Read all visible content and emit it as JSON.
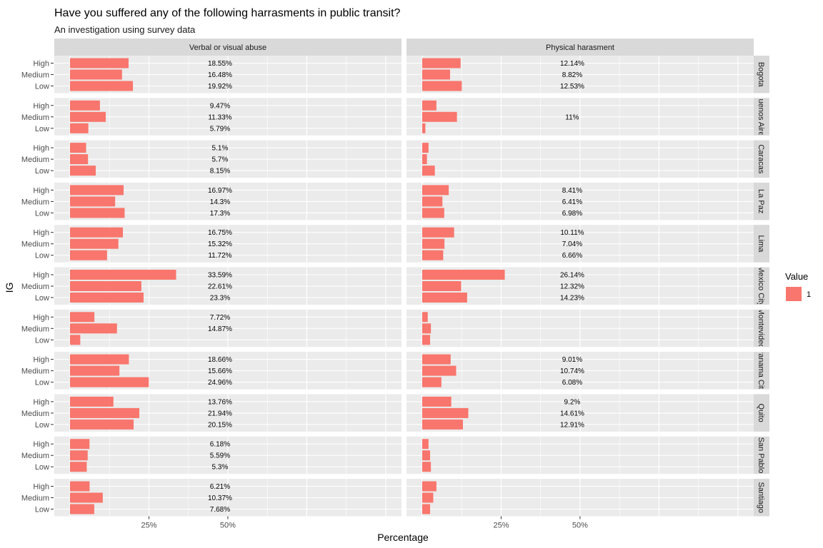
{
  "chart_data": {
    "type": "bar",
    "orientation": "horizontal",
    "title": "Have you suffered any of the following harrasments in public transit?",
    "subtitle": "An investigation using survey data",
    "xlabel": "Percentage",
    "ylabel": "IG",
    "xlim": [
      0,
      42
    ],
    "x_ticks": [
      {
        "value": 10,
        "label": "25%"
      },
      {
        "value": 20,
        "label": "50%"
      }
    ],
    "grid": true,
    "categories": [
      "High",
      "Medium",
      "Low"
    ],
    "panels": [
      {
        "label": "Verbal or visual abuse"
      },
      {
        "label": "Physical harasment"
      }
    ],
    "cities": [
      {
        "label": "Bogota",
        "verbal": {
          "values": [
            7.42,
            6.59,
            7.97
          ],
          "labels": [
            "18.55%",
            "16.48%",
            "19.92%"
          ]
        },
        "physical": {
          "values": [
            4.86,
            3.53,
            5.01
          ],
          "labels": [
            "12.14%",
            "8.82%",
            "12.53%"
          ]
        }
      },
      {
        "label": "Buenos Aires",
        "verbal": {
          "values": [
            3.79,
            4.53,
            2.32
          ],
          "labels": [
            "9.47%",
            "11.33%",
            "5.79%"
          ]
        },
        "physical": {
          "values": [
            1.8,
            4.4,
            0.4
          ],
          "labels": [
            "",
            "11%",
            ""
          ]
        }
      },
      {
        "label": "Caracas",
        "verbal": {
          "values": [
            2.04,
            2.28,
            3.26
          ],
          "labels": [
            "5.1%",
            "5.7%",
            "8.15%"
          ]
        },
        "physical": {
          "values": [
            0.8,
            0.6,
            1.6
          ],
          "labels": [
            "",
            "",
            ""
          ]
        }
      },
      {
        "label": "La Paz",
        "verbal": {
          "values": [
            6.79,
            5.72,
            6.92
          ],
          "labels": [
            "16.97%",
            "14.3%",
            "17.3%"
          ]
        },
        "physical": {
          "values": [
            3.36,
            2.56,
            2.79
          ],
          "labels": [
            "8.41%",
            "6.41%",
            "6.98%"
          ]
        }
      },
      {
        "label": "Lima",
        "verbal": {
          "values": [
            6.7,
            6.13,
            4.69
          ],
          "labels": [
            "16.75%",
            "15.32%",
            "11.72%"
          ]
        },
        "physical": {
          "values": [
            4.04,
            2.82,
            2.66
          ],
          "labels": [
            "10.11%",
            "7.04%",
            "6.66%"
          ]
        }
      },
      {
        "label": "Mexico City",
        "verbal": {
          "values": [
            13.44,
            9.04,
            9.32
          ],
          "labels": [
            "33.59%",
            "22.61%",
            "23.3%"
          ]
        },
        "physical": {
          "values": [
            10.46,
            4.93,
            5.69
          ],
          "labels": [
            "26.14%",
            "12.32%",
            "14.23%"
          ]
        }
      },
      {
        "label": "Montevideo",
        "verbal": {
          "values": [
            3.09,
            5.95,
            1.3
          ],
          "labels": [
            "7.72%",
            "14.87%",
            ""
          ]
        },
        "physical": {
          "values": [
            0.7,
            1.1,
            1.0
          ],
          "labels": [
            "",
            "",
            ""
          ]
        }
      },
      {
        "label": "Panama City",
        "verbal": {
          "values": [
            7.46,
            6.26,
            9.98
          ],
          "labels": [
            "18.66%",
            "15.66%",
            "24.96%"
          ]
        },
        "physical": {
          "values": [
            3.6,
            4.3,
            2.43
          ],
          "labels": [
            "9.01%",
            "10.74%",
            "6.08%"
          ]
        }
      },
      {
        "label": "Quito",
        "verbal": {
          "values": [
            5.5,
            8.78,
            8.06
          ],
          "labels": [
            "13.76%",
            "21.94%",
            "20.15%"
          ]
        },
        "physical": {
          "values": [
            3.68,
            5.84,
            5.16
          ],
          "labels": [
            "9.2%",
            "14.61%",
            "12.91%"
          ]
        }
      },
      {
        "label": "San Pablo",
        "verbal": {
          "values": [
            2.47,
            2.24,
            2.12
          ],
          "labels": [
            "6.18%",
            "5.59%",
            "5.3%"
          ]
        },
        "physical": {
          "values": [
            0.8,
            1.0,
            1.1
          ],
          "labels": [
            "",
            "",
            ""
          ]
        }
      },
      {
        "label": "Santiago",
        "verbal": {
          "values": [
            2.48,
            4.15,
            3.07
          ],
          "labels": [
            "6.21%",
            "10.37%",
            "7.68%"
          ]
        },
        "physical": {
          "values": [
            1.8,
            1.4,
            1.0
          ],
          "labels": [
            "",
            "",
            ""
          ]
        }
      }
    ],
    "legend": {
      "title": "Value",
      "position": "right",
      "items": [
        {
          "label": "1",
          "color": "#F8766D"
        }
      ]
    },
    "colors": {
      "bar": "#F8766D",
      "panel_bg": "#EBEBEB",
      "strip_bg": "#D9D9D9",
      "grid": "#FFFFFF"
    }
  }
}
